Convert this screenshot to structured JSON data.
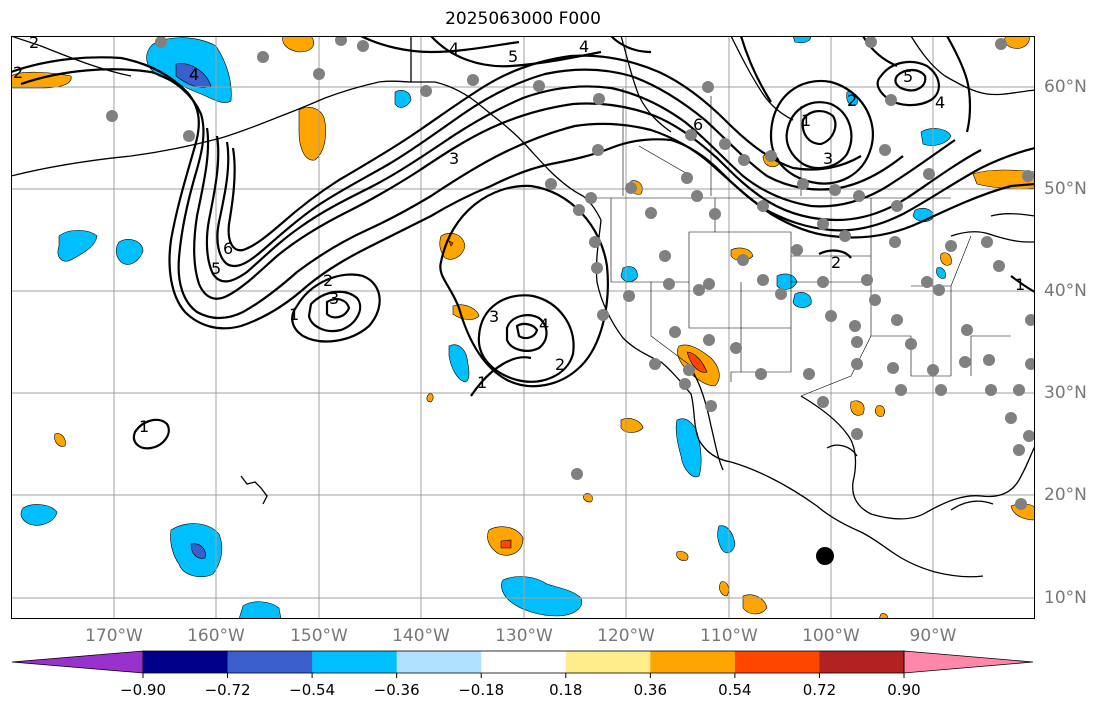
{
  "title": "2025063000 F000",
  "lon_labels": [
    "170°W",
    "160°W",
    "150°W",
    "140°W",
    "130°W",
    "120°W",
    "110°W",
    "100°W",
    "90°W"
  ],
  "lat_labels": [
    "60°N",
    "50°N",
    "40°N",
    "30°N",
    "20°N",
    "10°N"
  ],
  "colorbar": {
    "ticks": [
      "−0.90",
      "−0.72",
      "−0.54",
      "−0.36",
      "−0.18",
      "0.18",
      "0.36",
      "0.54",
      "0.72",
      "0.90"
    ],
    "colors": [
      "#9932cc",
      "#00008b",
      "#3a5fcd",
      "#00bfff",
      "#b0e2ff",
      "#ffffff",
      "#ffec8b",
      "#ffa500",
      "#ff4500",
      "#b22222",
      "#ff88aa"
    ]
  },
  "contour_labels": [
    "2",
    "2",
    "4",
    "5",
    "4",
    "4",
    "5",
    "4",
    "3",
    "6",
    "3",
    "2",
    "1",
    "6",
    "5",
    "2",
    "3",
    "1",
    "3",
    "4",
    "2",
    "1",
    "1",
    "2",
    "1"
  ],
  "colors": {
    "land_line": "#000000",
    "grid": "#a0a0a0",
    "station": "#808080"
  }
}
